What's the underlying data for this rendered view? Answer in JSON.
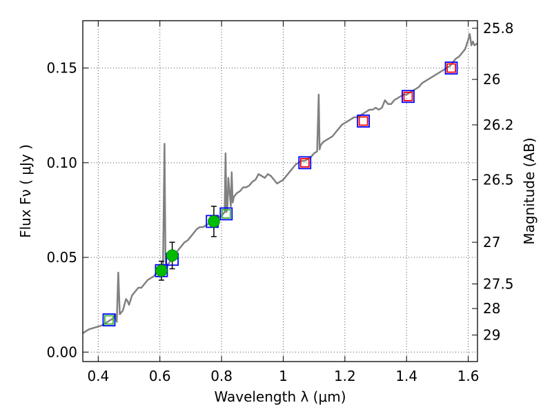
{
  "chart_data": {
    "type": "line",
    "xlabel": "Wavelength  λ (μm)",
    "ylabel": "Flux  Fν  ( μJy )",
    "y2label": "Magnitude (AB)",
    "xlim": [
      0.35,
      1.63
    ],
    "ylim": [
      -0.005,
      0.175
    ],
    "xticks": [
      0.4,
      0.6,
      0.8,
      1.0,
      1.2,
      1.4,
      1.6
    ],
    "xtick_labels": [
      "0.4",
      "0.6",
      "0.8",
      "1",
      "1.2",
      "1.4",
      "1.6"
    ],
    "yticks": [
      0.0,
      0.05,
      0.1,
      0.15
    ],
    "ytick_labels": [
      "0.00",
      "0.05",
      "0.10",
      "0.15"
    ],
    "y2ticks": [
      {
        "label": "25.8",
        "flux": 0.171
      },
      {
        "label": "26",
        "flux": 0.144
      },
      {
        "label": "26.2",
        "flux": 0.12
      },
      {
        "label": "26.5",
        "flux": 0.091
      },
      {
        "label": "27",
        "flux": 0.058
      },
      {
        "label": "27.5",
        "flux": 0.036
      },
      {
        "label": "28",
        "flux": 0.023
      },
      {
        "label": "29",
        "flux": 0.009
      }
    ],
    "grid": true,
    "series": [
      {
        "kind": "line",
        "color": "#808080",
        "x": [
          0.35,
          0.37,
          0.39,
          0.41,
          0.43,
          0.45,
          0.455,
          0.46,
          0.465,
          0.47,
          0.48,
          0.49,
          0.495,
          0.5,
          0.51,
          0.52,
          0.53,
          0.54,
          0.55,
          0.56,
          0.57,
          0.58,
          0.59,
          0.6,
          0.61,
          0.615,
          0.618,
          0.621,
          0.624,
          0.63,
          0.64,
          0.65,
          0.66,
          0.67,
          0.68,
          0.69,
          0.7,
          0.71,
          0.72,
          0.73,
          0.74,
          0.75,
          0.76,
          0.77,
          0.78,
          0.79,
          0.8,
          0.81,
          0.813,
          0.816,
          0.819,
          0.822,
          0.83,
          0.833,
          0.836,
          0.84,
          0.85,
          0.86,
          0.87,
          0.88,
          0.89,
          0.9,
          0.91,
          0.92,
          0.93,
          0.94,
          0.95,
          0.96,
          0.97,
          0.98,
          0.99,
          1.0,
          1.01,
          1.02,
          1.03,
          1.04,
          1.05,
          1.06,
          1.07,
          1.08,
          1.09,
          1.1,
          1.11,
          1.115,
          1.118,
          1.121,
          1.125,
          1.13,
          1.14,
          1.15,
          1.16,
          1.17,
          1.18,
          1.19,
          1.2,
          1.21,
          1.22,
          1.23,
          1.24,
          1.25,
          1.26,
          1.27,
          1.28,
          1.29,
          1.3,
          1.31,
          1.32,
          1.33,
          1.34,
          1.35,
          1.36,
          1.37,
          1.38,
          1.39,
          1.4,
          1.41,
          1.42,
          1.43,
          1.44,
          1.45,
          1.46,
          1.47,
          1.48,
          1.49,
          1.5,
          1.51,
          1.52,
          1.53,
          1.54,
          1.55,
          1.56,
          1.57,
          1.58,
          1.59,
          1.6,
          1.605,
          1.61,
          1.615,
          1.62,
          1.63
        ],
        "y": [
          0.01,
          0.012,
          0.013,
          0.014,
          0.016,
          0.018,
          0.02,
          0.016,
          0.042,
          0.02,
          0.022,
          0.028,
          0.027,
          0.025,
          0.03,
          0.032,
          0.034,
          0.034,
          0.036,
          0.038,
          0.039,
          0.04,
          0.042,
          0.043,
          0.044,
          0.11,
          0.05,
          0.043,
          0.046,
          0.047,
          0.05,
          0.052,
          0.054,
          0.056,
          0.058,
          0.059,
          0.061,
          0.063,
          0.065,
          0.066,
          0.066,
          0.067,
          0.068,
          0.069,
          0.07,
          0.071,
          0.072,
          0.074,
          0.105,
          0.074,
          0.076,
          0.092,
          0.077,
          0.095,
          0.079,
          0.082,
          0.084,
          0.085,
          0.087,
          0.087,
          0.088,
          0.09,
          0.091,
          0.094,
          0.093,
          0.092,
          0.094,
          0.093,
          0.091,
          0.089,
          0.09,
          0.091,
          0.093,
          0.095,
          0.097,
          0.099,
          0.1,
          0.101,
          0.101,
          0.102,
          0.103,
          0.105,
          0.106,
          0.136,
          0.107,
          0.109,
          0.11,
          0.111,
          0.112,
          0.113,
          0.114,
          0.116,
          0.118,
          0.12,
          0.121,
          0.122,
          0.123,
          0.124,
          0.124,
          0.125,
          0.126,
          0.127,
          0.128,
          0.128,
          0.129,
          0.128,
          0.129,
          0.133,
          0.131,
          0.131,
          0.133,
          0.134,
          0.135,
          0.136,
          0.136,
          0.137,
          0.138,
          0.139,
          0.14,
          0.142,
          0.143,
          0.144,
          0.145,
          0.146,
          0.147,
          0.148,
          0.149,
          0.15,
          0.151,
          0.153,
          0.155,
          0.156,
          0.158,
          0.16,
          0.165,
          0.168,
          0.162,
          0.164,
          0.162,
          0.163
        ]
      },
      {
        "kind": "markers",
        "marker": "square",
        "edgecolor": "#0000ff",
        "name": "",
        "x": [
          0.435,
          0.605,
          0.64,
          0.77,
          0.815,
          1.07,
          1.26,
          1.405,
          1.545
        ],
        "y": [
          0.017,
          0.043,
          0.049,
          0.069,
          0.073,
          0.1,
          0.122,
          0.135,
          0.15
        ]
      },
      {
        "kind": "markers",
        "marker": "square",
        "edgecolor": "#ff0000",
        "size": "small",
        "x": [
          1.07,
          1.26,
          1.405,
          1.545
        ],
        "y": [
          0.1,
          0.122,
          0.135,
          0.15
        ]
      },
      {
        "kind": "markers",
        "marker": "square",
        "edgecolor": "#33bb33",
        "size": "small",
        "x": [
          0.435,
          0.815
        ],
        "y": [
          0.017,
          0.073
        ]
      },
      {
        "kind": "errorbar",
        "marker": "circle",
        "color": "#00bb00",
        "x": [
          0.605,
          0.64,
          0.775
        ],
        "y": [
          0.043,
          0.051,
          0.069
        ],
        "yerr": [
          0.005,
          0.007,
          0.008
        ]
      }
    ]
  }
}
